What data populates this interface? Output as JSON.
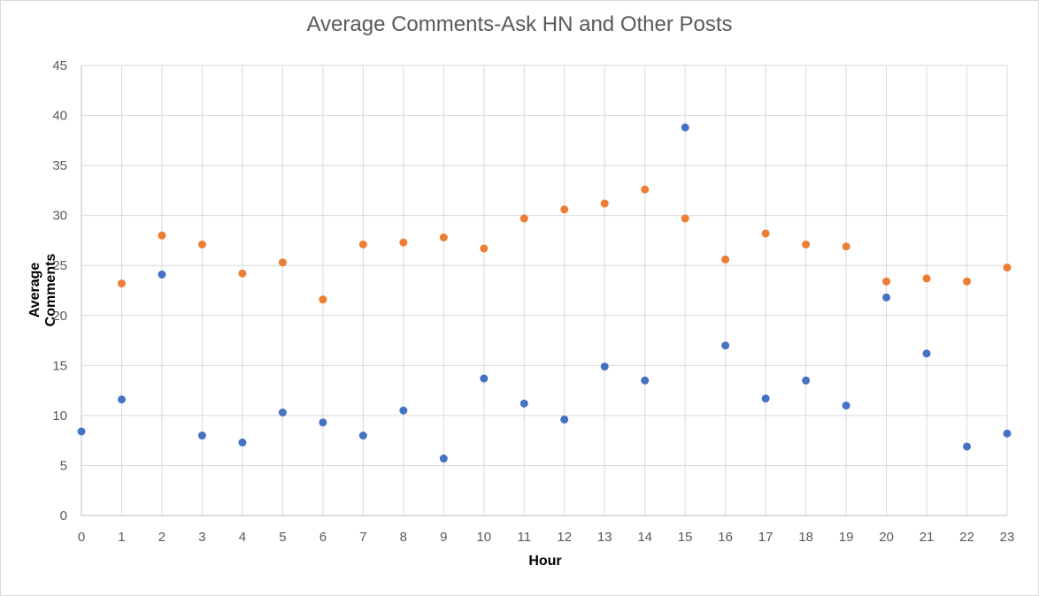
{
  "chart_data": {
    "type": "scatter",
    "title": "Average Comments-Ask HN and Other Posts",
    "xlabel": "Hour",
    "ylabel": "Average Comments",
    "x": [
      0,
      1,
      2,
      3,
      4,
      5,
      6,
      7,
      8,
      9,
      10,
      11,
      12,
      13,
      14,
      15,
      16,
      17,
      18,
      19,
      20,
      21,
      22,
      23
    ],
    "xlim": [
      0,
      23
    ],
    "ylim": [
      0,
      45
    ],
    "x_ticks": [
      "0",
      "1",
      "2",
      "3",
      "4",
      "5",
      "6",
      "7",
      "8",
      "9",
      "10",
      "11",
      "12",
      "13",
      "14",
      "15",
      "16",
      "17",
      "18",
      "19",
      "20",
      "21",
      "22",
      "23"
    ],
    "y_ticks": [
      "0",
      "5",
      "10",
      "15",
      "20",
      "25",
      "30",
      "35",
      "40",
      "45"
    ],
    "grid": true,
    "legend": "none",
    "series": [
      {
        "color": "#4472c4",
        "values": [
          8.4,
          11.6,
          24.1,
          8.0,
          7.3,
          10.3,
          9.3,
          8.0,
          10.5,
          5.7,
          13.7,
          11.2,
          9.6,
          14.9,
          13.5,
          38.8,
          17.0,
          11.7,
          13.5,
          11.0,
          21.8,
          16.2,
          6.9,
          8.2
        ]
      },
      {
        "color": "#ed7d31",
        "values": [
          null,
          23.2,
          28.0,
          27.1,
          24.2,
          25.3,
          21.6,
          27.1,
          27.3,
          27.8,
          26.7,
          29.7,
          30.6,
          31.2,
          32.6,
          29.7,
          25.6,
          28.2,
          27.1,
          26.9,
          23.4,
          23.7,
          23.4,
          24.8
        ]
      }
    ]
  }
}
